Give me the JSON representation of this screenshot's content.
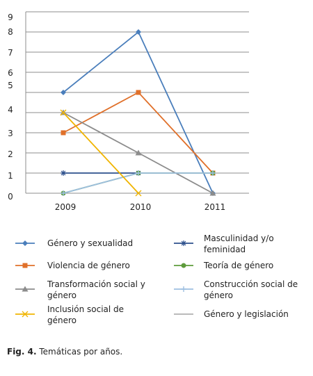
{
  "chart_data": {
    "type": "line",
    "x": [
      "2009",
      "2010",
      "2011"
    ],
    "y_tick_labels": [
      "0",
      "1",
      "2",
      "3",
      "4",
      "5",
      "6",
      "7",
      "8",
      "9"
    ],
    "ylim": [
      0,
      9
    ],
    "grid": true,
    "legend_position": "bottom",
    "series": [
      {
        "name": "Género y sexualidad",
        "values": [
          5,
          8,
          0
        ],
        "color": "#4a7ebb",
        "marker": "diamond"
      },
      {
        "name": "Masculinidad y/o feminidad",
        "values": [
          1,
          1,
          null
        ],
        "color": "#2c4f8c",
        "marker": "star"
      },
      {
        "name": "Violencia de género",
        "values": [
          3,
          5,
          1
        ],
        "color": "#e0702a",
        "marker": "square"
      },
      {
        "name": "Teoría de género",
        "values": [
          0,
          1,
          1
        ],
        "color": "#5e9b3c",
        "marker": "circle"
      },
      {
        "name": "Transformación social y género",
        "values": [
          4,
          2,
          0
        ],
        "color": "#8c8c8c",
        "marker": "triangle"
      },
      {
        "name": "Construcción social de género",
        "values": [
          0,
          1,
          1
        ],
        "color": "#9dbfe0",
        "marker": "plus"
      },
      {
        "name": "Inclusión social de género",
        "values": [
          4,
          0,
          null
        ],
        "color": "#f0b400",
        "marker": "x"
      },
      {
        "name": "Género y legislación",
        "values": [
          null,
          null,
          null
        ],
        "color": "#b0b0b0",
        "marker": "none"
      }
    ]
  },
  "caption": {
    "label": "Fig. 4.",
    "text": " Temáticas por años."
  }
}
